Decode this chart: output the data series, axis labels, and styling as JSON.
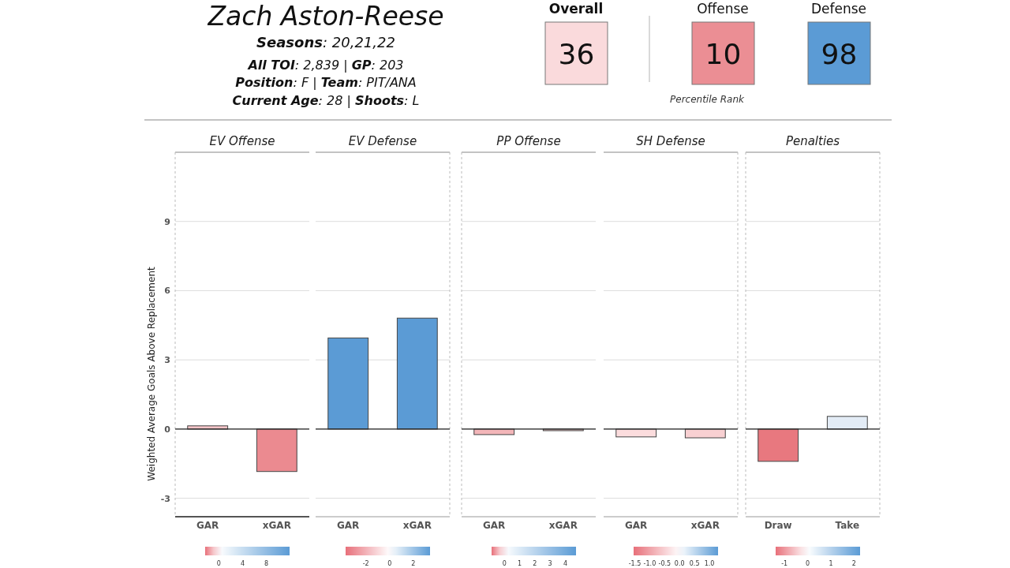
{
  "chart_data": [
    {
      "type": "other",
      "title": "Zach Aston-Reese",
      "annotations": [
        "Seasons: 20,21,22",
        "All TOI: 2,839 | GP: 203",
        "Position: F | Team: PIT/ANA",
        "Current Age: 28 | Shoots: L",
        "Percentile Rank"
      ],
      "categories": [
        "Overall",
        "Offense",
        "Defense"
      ],
      "values": [
        36,
        10,
        98
      ],
      "data_labels": true,
      "colors": [
        "#fadadc",
        "#eb8e94",
        "#5b9bd5"
      ]
    },
    {
      "type": "bar",
      "title": "EV Offense",
      "ylabel": "Weighted Average Goals Above Replacement",
      "categories": [
        "GAR",
        "xGAR"
      ],
      "values": [
        0.14,
        -1.84
      ],
      "colors": [
        "#f5c4c7",
        "#eb8a90"
      ],
      "ylim": [
        -3.8,
        12
      ],
      "yticks": [
        -3,
        0,
        3,
        6,
        9
      ],
      "grid": "y",
      "clim": [
        -2.3,
        11.9
      ],
      "cticks": [
        0,
        4,
        8
      ]
    },
    {
      "type": "bar",
      "title": "EV Defense",
      "categories": [
        "GAR",
        "xGAR"
      ],
      "values": [
        3.95,
        4.81
      ],
      "colors": [
        "#5b9bd5",
        "#5b9bd5"
      ],
      "ylim": [
        -3.8,
        12
      ],
      "yticks": [
        -3,
        0,
        3,
        6,
        9
      ],
      "grid": "y",
      "tick_labels": "x",
      "clim": [
        -3.7,
        3.4
      ],
      "cticks": [
        -2,
        0,
        2
      ]
    },
    {
      "type": "bar",
      "title": "PP Offense",
      "categories": [
        "GAR",
        "xGAR"
      ],
      "values": [
        -0.24,
        -0.07
      ],
      "colors": [
        "#f3b6b9",
        "#ecc6c7"
      ],
      "ylim": [
        -3.8,
        12
      ],
      "yticks": [
        -3,
        0,
        3,
        6,
        9
      ],
      "grid": "y",
      "tick_labels": "x",
      "clim": [
        -0.84,
        4.7
      ],
      "cticks": [
        0,
        1,
        2,
        3,
        4
      ]
    },
    {
      "type": "bar",
      "title": "SH Defense",
      "categories": [
        "GAR",
        "xGAR"
      ],
      "values": [
        -0.34,
        -0.38
      ],
      "colors": [
        "#fbdcdd",
        "#f8d0d2"
      ],
      "ylim": [
        -3.8,
        12
      ],
      "yticks": [
        -3,
        0,
        3,
        6,
        9
      ],
      "grid": "y",
      "tick_labels": "x",
      "clim": [
        -1.54,
        1.29
      ],
      "cticks": [
        {
          "value": -1.5,
          "label": "-1.5"
        },
        {
          "value": -1,
          "label": "-1.0"
        },
        {
          "value": -0.5,
          "label": "-0.5"
        },
        {
          "value": 0,
          "label": "0.0"
        },
        {
          "value": 0.5,
          "label": "0.5"
        },
        {
          "value": 1,
          "label": "1.0"
        }
      ]
    },
    {
      "type": "bar",
      "title": "Penalties",
      "categories": [
        "Draw",
        "Take"
      ],
      "values": [
        -1.4,
        0.55
      ],
      "colors": [
        "#e8787f",
        "#e3ecf6"
      ],
      "ylim": [
        -3.8,
        12
      ],
      "yticks": [
        -3,
        0,
        3,
        6,
        9
      ],
      "grid": "y",
      "tick_labels": "x",
      "clim": [
        -1.38,
        2.26
      ],
      "cticks": [
        -1,
        0,
        1,
        2
      ]
    }
  ]
}
